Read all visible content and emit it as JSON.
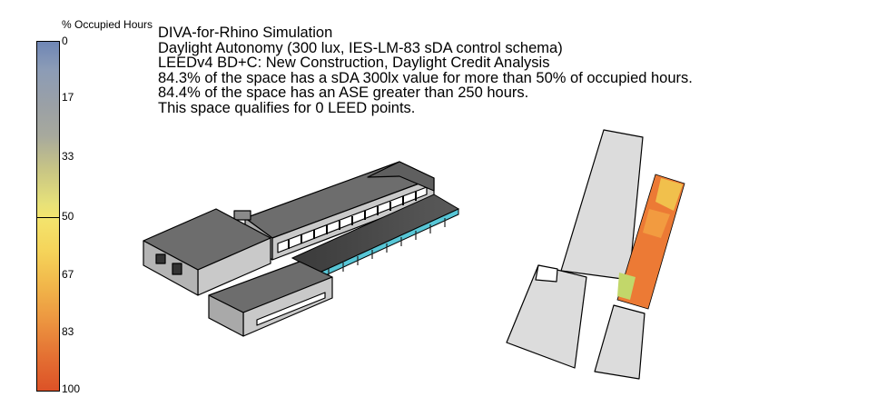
{
  "legend": {
    "title": "% Occupied Hours",
    "ticks": [
      "0",
      "17",
      "33",
      "50",
      "67",
      "83",
      "100"
    ],
    "threshold_value": "50"
  },
  "info": {
    "lines": [
      "DIVA-for-Rhino Simulation",
      "Daylight Autonomy (300 lux, IES-LM-83 sDA control schema)",
      "LEEDv4 BD+C: New Construction, Daylight Credit Analysis",
      "84.3% of the space has a sDA 300lx value for more than 50% of occupied hours.",
      "84.4% of the space has an ASE greater than 250 hours.",
      "This space qualifies for 0 LEED points."
    ]
  },
  "colors": {
    "roof": "#6d6d6d",
    "wall": "#c9c9c9",
    "sda_high": "#ec7a35",
    "sda_mid": "#f1c04c",
    "sda_low": "#c2d76a",
    "glazing_accent": "#58c6d6"
  }
}
